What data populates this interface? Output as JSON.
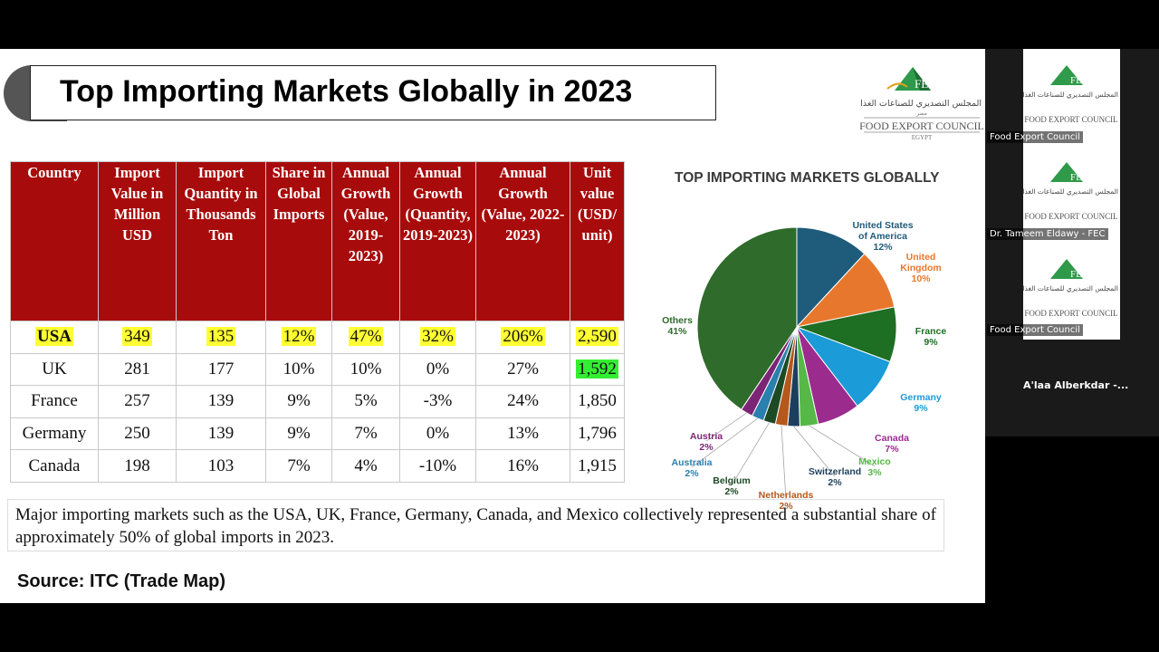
{
  "slide": {
    "title": "Top Importing Markets Globally in 2023",
    "logo": {
      "arabic": "المجلس التصديري للصناعات الغذائية",
      "arabic_sub": "مصر",
      "name": "FOOD EXPORT COUNCIL",
      "country": "EGYPT",
      "abbr": "FEC"
    },
    "table": {
      "headers": [
        "Country",
        "Import Value in Million USD",
        "Import Quantity in Thousands Ton",
        "Share in Global Imports",
        "Annual Growth (Value, 2019-2023)",
        "Annual Growth (Quantity, 2019-2023)",
        "Annual Growth (Value, 2022-2023)",
        "Unit value (USD/ unit)"
      ],
      "rows": [
        [
          "USA",
          "349",
          "135",
          "12%",
          "47%",
          "32%",
          "206%",
          "2,590"
        ],
        [
          "UK",
          "281",
          "177",
          "10%",
          "10%",
          "0%",
          "27%",
          "1,592"
        ],
        [
          "France",
          "257",
          "139",
          "9%",
          "5%",
          "-3%",
          "24%",
          "1,850"
        ],
        [
          "Germany",
          "250",
          "139",
          "9%",
          "7%",
          "0%",
          "13%",
          "1,796"
        ],
        [
          "Canada",
          "198",
          "103",
          "7%",
          "4%",
          "-10%",
          "16%",
          "1,915"
        ]
      ]
    },
    "note": "Major importing markets such as the USA, UK, France, Germany, Canada, and Mexico collectively represented a substantial share of approximately 50% of global imports in 2023.",
    "source": "Source: ITC (Trade Map)"
  },
  "chart_data": {
    "type": "pie",
    "title": "TOP IMPORTING MARKETS GLOBALLY",
    "slices": [
      {
        "name": "United States of America",
        "value": 12,
        "label": "12%",
        "color": "#1f5b7a"
      },
      {
        "name": "United Kingdom",
        "value": 10,
        "label": "10%",
        "color": "#e8772e"
      },
      {
        "name": "France",
        "value": 9,
        "label": "9%",
        "color": "#1e6e23"
      },
      {
        "name": "Germany",
        "value": 9,
        "label": "9%",
        "color": "#1b9bd7"
      },
      {
        "name": "Canada",
        "value": 7,
        "label": "7%",
        "color": "#9c2b8e"
      },
      {
        "name": "Mexico",
        "value": 3,
        "label": "3%",
        "color": "#55b847"
      },
      {
        "name": "Switzerland",
        "value": 2,
        "label": "2%",
        "color": "#1d3f5e"
      },
      {
        "name": "Netherlands",
        "value": 2,
        "label": "2%",
        "color": "#b5581c"
      },
      {
        "name": "Belgium",
        "value": 2,
        "label": "2%",
        "color": "#1c4a25"
      },
      {
        "name": "Australia",
        "value": 2,
        "label": "2%",
        "color": "#2a7fae"
      },
      {
        "name": "Austria",
        "value": 2,
        "label": "2%",
        "color": "#7c2576"
      },
      {
        "name": "Others",
        "value": 41,
        "label": "41%",
        "color": "#2f6b2a"
      }
    ]
  },
  "meeting": {
    "participants": [
      {
        "name": "Food Export Council"
      },
      {
        "name": "Dr. Tameem Eldawy - FEC"
      },
      {
        "name": "Food Export Council"
      }
    ],
    "speaker": "A'laa Alberkdar -..."
  },
  "colors": {
    "header_red": "#a80b0b",
    "highlight_yellow": "#ffff33",
    "highlight_green": "#33ee33"
  }
}
